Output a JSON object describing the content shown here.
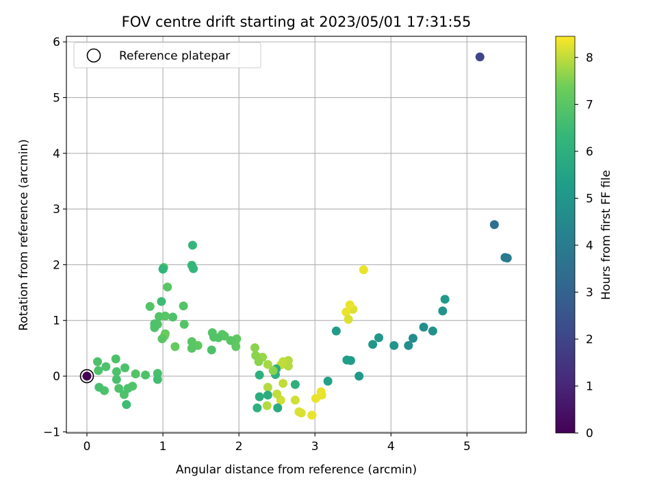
{
  "chart_data": {
    "type": "scatter",
    "title": "FOV centre drift starting at 2023/05/01 17:31:55",
    "xlabel": "Angular distance from reference (arcmin)",
    "ylabel": "Rotation from reference (arcmin)",
    "colorbar_label": "Hours from first FF file",
    "colormap": "viridis",
    "xlim": [
      -0.27,
      5.78
    ],
    "ylim": [
      -1.02,
      6.1
    ],
    "clim": [
      0,
      8.45
    ],
    "xticks": [
      0,
      1,
      2,
      3,
      4,
      5
    ],
    "yticks": [
      -1,
      0,
      1,
      2,
      3,
      4,
      5,
      6
    ],
    "cticks": [
      0,
      1,
      2,
      3,
      4,
      5,
      6,
      7,
      8
    ],
    "grid": true,
    "legend": {
      "position": "top-left",
      "entries": [
        "Reference platepar"
      ]
    },
    "reference_point": {
      "x": 0,
      "y": 0
    },
    "points": [
      {
        "x": 0.0,
        "y": 0.0,
        "h": 0.0
      },
      {
        "x": 5.17,
        "y": 5.73,
        "h": 2.0
      },
      {
        "x": 5.36,
        "y": 2.72,
        "h": 3.5
      },
      {
        "x": 5.5,
        "y": 2.13,
        "h": 3.9
      },
      {
        "x": 5.53,
        "y": 2.12,
        "h": 3.9
      },
      {
        "x": 4.71,
        "y": 1.38,
        "h": 5.1
      },
      {
        "x": 4.68,
        "y": 1.17,
        "h": 4.9
      },
      {
        "x": 4.55,
        "y": 0.81,
        "h": 4.8
      },
      {
        "x": 4.43,
        "y": 0.88,
        "h": 4.7
      },
      {
        "x": 4.29,
        "y": 0.68,
        "h": 4.6
      },
      {
        "x": 4.23,
        "y": 0.55,
        "h": 4.7
      },
      {
        "x": 4.04,
        "y": 0.55,
        "h": 4.9
      },
      {
        "x": 3.84,
        "y": 0.69,
        "h": 5.0
      },
      {
        "x": 3.76,
        "y": 0.57,
        "h": 5.0
      },
      {
        "x": 3.58,
        "y": 0.0,
        "h": 5.1
      },
      {
        "x": 3.47,
        "y": 0.28,
        "h": 5.2
      },
      {
        "x": 3.42,
        "y": 0.29,
        "h": 5.3
      },
      {
        "x": 3.28,
        "y": 0.81,
        "h": 5.2
      },
      {
        "x": 3.17,
        "y": -0.09,
        "h": 5.4
      },
      {
        "x": 3.64,
        "y": 1.91,
        "h": 8.3
      },
      {
        "x": 3.5,
        "y": 1.2,
        "h": 8.2
      },
      {
        "x": 3.46,
        "y": 1.28,
        "h": 8.3
      },
      {
        "x": 3.41,
        "y": 1.15,
        "h": 8.3
      },
      {
        "x": 3.44,
        "y": 1.02,
        "h": 8.2
      },
      {
        "x": 3.08,
        "y": -0.28,
        "h": 8.3
      },
      {
        "x": 3.09,
        "y": -0.34,
        "h": 8.3
      },
      {
        "x": 3.01,
        "y": -0.4,
        "h": 8.3
      },
      {
        "x": 2.96,
        "y": -0.7,
        "h": 8.3
      },
      {
        "x": 2.82,
        "y": -0.66,
        "h": 8.2
      },
      {
        "x": 2.79,
        "y": -0.64,
        "h": 8.2
      },
      {
        "x": 2.74,
        "y": -0.43,
        "h": 8.1
      },
      {
        "x": 2.74,
        "y": -0.15,
        "h": 6.0
      },
      {
        "x": 2.65,
        "y": 0.28,
        "h": 7.9
      },
      {
        "x": 2.65,
        "y": 0.18,
        "h": 7.9
      },
      {
        "x": 2.58,
        "y": 0.26,
        "h": 8.0
      },
      {
        "x": 2.55,
        "y": 0.2,
        "h": 8.0
      },
      {
        "x": 2.58,
        "y": -0.13,
        "h": 8.0
      },
      {
        "x": 2.55,
        "y": -0.43,
        "h": 8.1
      },
      {
        "x": 2.5,
        "y": -0.32,
        "h": 8.0
      },
      {
        "x": 2.51,
        "y": -0.57,
        "h": 5.8
      },
      {
        "x": 2.49,
        "y": 0.13,
        "h": 5.9
      },
      {
        "x": 2.48,
        "y": 0.03,
        "h": 6.0
      },
      {
        "x": 2.45,
        "y": 0.1,
        "h": 7.6
      },
      {
        "x": 2.38,
        "y": 0.21,
        "h": 7.8
      },
      {
        "x": 2.38,
        "y": -0.2,
        "h": 7.9
      },
      {
        "x": 2.38,
        "y": -0.34,
        "h": 5.9
      },
      {
        "x": 2.37,
        "y": -0.53,
        "h": 7.9
      },
      {
        "x": 2.31,
        "y": 0.34,
        "h": 7.7
      },
      {
        "x": 2.26,
        "y": 0.26,
        "h": 7.6
      },
      {
        "x": 2.22,
        "y": 0.37,
        "h": 7.6
      },
      {
        "x": 2.21,
        "y": 0.51,
        "h": 7.6
      },
      {
        "x": 2.27,
        "y": 0.02,
        "h": 6.0
      },
      {
        "x": 2.27,
        "y": -0.37,
        "h": 5.9
      },
      {
        "x": 2.24,
        "y": -0.57,
        "h": 6.1
      },
      {
        "x": 1.97,
        "y": 0.67,
        "h": 7.1
      },
      {
        "x": 1.95,
        "y": 0.6,
        "h": 7.1
      },
      {
        "x": 1.96,
        "y": 0.53,
        "h": 7.1
      },
      {
        "x": 1.89,
        "y": 0.64,
        "h": 7.0
      },
      {
        "x": 1.81,
        "y": 0.72,
        "h": 7.0
      },
      {
        "x": 1.78,
        "y": 0.75,
        "h": 7.0
      },
      {
        "x": 1.73,
        "y": 0.69,
        "h": 6.9
      },
      {
        "x": 1.67,
        "y": 0.7,
        "h": 6.9
      },
      {
        "x": 1.65,
        "y": 0.78,
        "h": 6.9
      },
      {
        "x": 1.64,
        "y": 0.47,
        "h": 6.8
      },
      {
        "x": 1.46,
        "y": 0.55,
        "h": 7.1
      },
      {
        "x": 1.38,
        "y": 0.62,
        "h": 7.0
      },
      {
        "x": 1.38,
        "y": 0.5,
        "h": 7.0
      },
      {
        "x": 1.38,
        "y": 1.99,
        "h": 6.3
      },
      {
        "x": 1.4,
        "y": 1.93,
        "h": 6.3
      },
      {
        "x": 1.39,
        "y": 2.35,
        "h": 6.3
      },
      {
        "x": 1.27,
        "y": 1.26,
        "h": 6.9
      },
      {
        "x": 1.28,
        "y": 0.93,
        "h": 6.9
      },
      {
        "x": 1.16,
        "y": 0.53,
        "h": 7.2
      },
      {
        "x": 1.13,
        "y": 1.06,
        "h": 6.8
      },
      {
        "x": 1.06,
        "y": 1.6,
        "h": 7.0
      },
      {
        "x": 1.03,
        "y": 0.76,
        "h": 7.2
      },
      {
        "x": 1.02,
        "y": 0.72,
        "h": 7.3
      },
      {
        "x": 1.01,
        "y": 1.95,
        "h": 6.8
      },
      {
        "x": 1.0,
        "y": 1.92,
        "h": 6.2
      },
      {
        "x": 0.99,
        "y": 0.67,
        "h": 7.0
      },
      {
        "x": 0.98,
        "y": 1.34,
        "h": 6.5
      },
      {
        "x": 1.03,
        "y": 1.08,
        "h": 7.0
      },
      {
        "x": 0.95,
        "y": 1.07,
        "h": 6.9
      },
      {
        "x": 0.93,
        "y": 0.93,
        "h": 6.9
      },
      {
        "x": 0.89,
        "y": 0.87,
        "h": 6.8
      },
      {
        "x": 0.89,
        "y": 0.94,
        "h": 6.8
      },
      {
        "x": 0.83,
        "y": 1.25,
        "h": 6.9
      },
      {
        "x": 0.93,
        "y": 0.05,
        "h": 6.7
      },
      {
        "x": 0.93,
        "y": -0.06,
        "h": 6.6
      },
      {
        "x": 0.77,
        "y": 0.02,
        "h": 6.8
      },
      {
        "x": 0.64,
        "y": 0.04,
        "h": 6.9
      },
      {
        "x": 0.6,
        "y": -0.18,
        "h": 6.9
      },
      {
        "x": 0.54,
        "y": -0.22,
        "h": 6.8
      },
      {
        "x": 0.52,
        "y": -0.51,
        "h": 6.5
      },
      {
        "x": 0.5,
        "y": 0.15,
        "h": 6.8
      },
      {
        "x": 0.49,
        "y": -0.33,
        "h": 6.8
      },
      {
        "x": 0.42,
        "y": -0.22,
        "h": 6.8
      },
      {
        "x": 0.39,
        "y": -0.06,
        "h": 6.7
      },
      {
        "x": 0.39,
        "y": 0.08,
        "h": 6.8
      },
      {
        "x": 0.38,
        "y": 0.31,
        "h": 6.8
      },
      {
        "x": 0.25,
        "y": 0.17,
        "h": 6.8
      },
      {
        "x": 0.23,
        "y": -0.26,
        "h": 6.8
      },
      {
        "x": 0.16,
        "y": -0.2,
        "h": 6.7
      },
      {
        "x": 0.15,
        "y": 0.1,
        "h": 6.8
      },
      {
        "x": 0.14,
        "y": 0.26,
        "h": 6.8
      }
    ]
  }
}
